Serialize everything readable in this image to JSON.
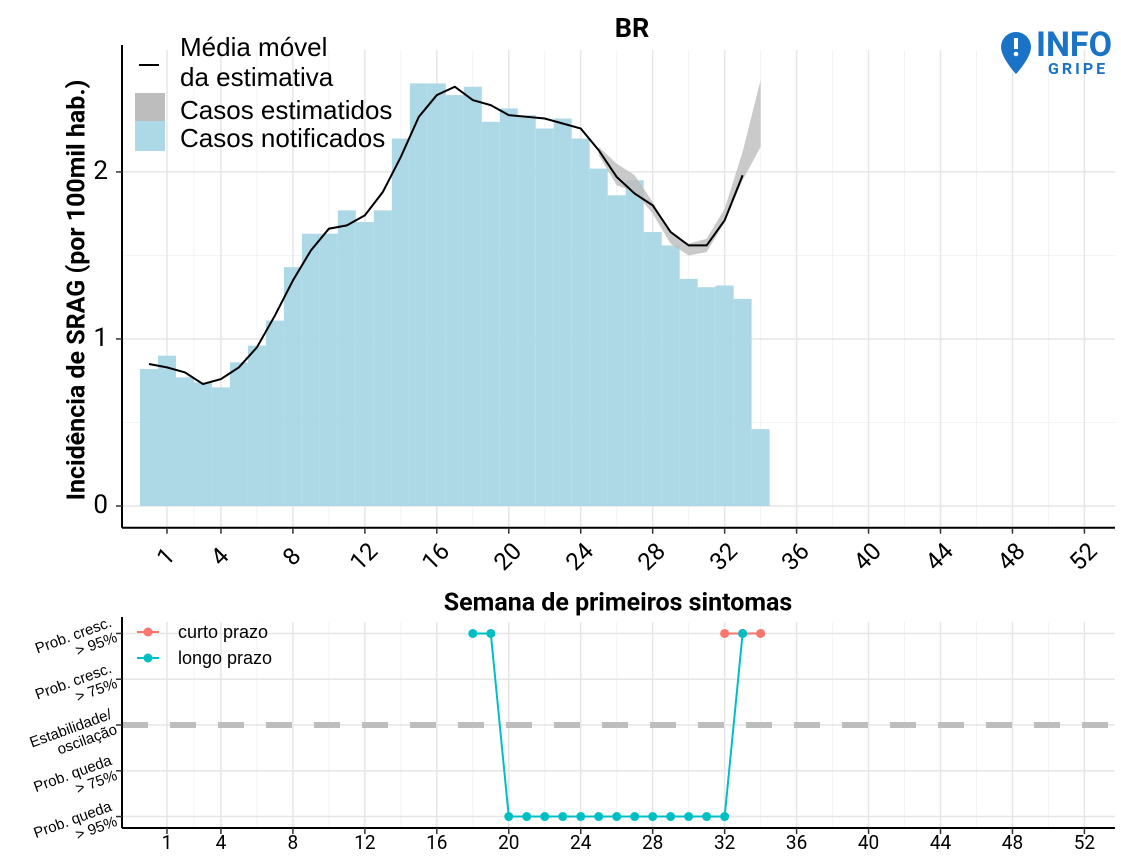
{
  "chart_data": [
    {
      "type": "bar",
      "title": "BR",
      "xlabel": "Semana de primeiros sintomas",
      "ylabel": "Incidência de SRAG (por 100mil hab.)",
      "x": [
        0,
        1,
        2,
        3,
        4,
        5,
        6,
        7,
        8,
        9,
        10,
        11,
        12,
        13,
        14,
        15,
        16,
        17,
        18,
        19,
        20,
        21,
        22,
        23,
        24,
        25,
        26,
        27,
        28,
        29,
        30,
        31,
        32,
        33,
        34
      ],
      "series": [
        {
          "name": "Média móvel\nda estimativa",
          "type": "line",
          "color": "#000000",
          "values": [
            0.85,
            0.83,
            0.8,
            0.73,
            0.76,
            0.83,
            0.95,
            1.14,
            1.35,
            1.53,
            1.66,
            1.68,
            1.74,
            1.88,
            2.09,
            2.33,
            2.46,
            2.51,
            2.43,
            2.4,
            2.34,
            2.33,
            2.32,
            2.29,
            2.26,
            2.13,
            1.97,
            1.87,
            1.8,
            1.64,
            1.56,
            1.56,
            1.71,
            1.98,
            null
          ]
        },
        {
          "name": "Casos estimatidos",
          "type": "band",
          "color": "#bdbdbd",
          "lower": [
            null,
            null,
            null,
            null,
            null,
            null,
            null,
            null,
            null,
            null,
            null,
            null,
            null,
            null,
            null,
            null,
            null,
            null,
            null,
            null,
            null,
            null,
            null,
            null,
            null,
            2.1,
            1.92,
            1.88,
            1.75,
            1.57,
            1.5,
            1.52,
            1.7,
            1.95,
            2.15
          ],
          "upper": [
            null,
            null,
            null,
            null,
            null,
            null,
            null,
            null,
            null,
            null,
            null,
            null,
            null,
            null,
            null,
            null,
            null,
            null,
            null,
            null,
            null,
            null,
            null,
            null,
            null,
            2.15,
            2.05,
            1.98,
            1.82,
            1.64,
            1.57,
            1.6,
            1.78,
            2.12,
            2.55
          ]
        },
        {
          "name": "Casos notificados",
          "type": "bar",
          "color": "#add8e6",
          "values": [
            0.82,
            0.9,
            0.77,
            0.74,
            0.71,
            0.86,
            0.96,
            1.11,
            1.43,
            1.63,
            1.63,
            1.77,
            1.7,
            1.77,
            2.2,
            2.53,
            2.53,
            2.46,
            2.51,
            2.3,
            2.38,
            2.34,
            2.26,
            2.32,
            2.2,
            2.02,
            1.86,
            1.95,
            1.64,
            1.56,
            1.36,
            1.31,
            1.32,
            1.24,
            0.46
          ]
        }
      ],
      "xlim": [
        -1.5,
        53.7
      ],
      "xticks": [
        1,
        4,
        8,
        12,
        16,
        20,
        24,
        28,
        32,
        36,
        40,
        44,
        48,
        52
      ],
      "ylim": [
        -0.13,
        2.73
      ],
      "yticks": [
        0,
        1,
        2
      ],
      "grid": true,
      "logo": [
        "INFO",
        "GRIPE"
      ]
    },
    {
      "type": "line",
      "series": [
        {
          "name": "curto prazo",
          "color": "#F8766D",
          "x": [
            32,
            33,
            34
          ],
          "values": [
            2,
            2,
            2
          ]
        },
        {
          "name": "longo prazo",
          "color": "#00BFC4",
          "x": [
            18,
            19,
            20,
            21,
            22,
            23,
            24,
            25,
            26,
            27,
            28,
            29,
            30,
            31,
            32,
            33
          ],
          "values": [
            2,
            2,
            -2,
            -2,
            -2,
            -2,
            -2,
            -2,
            -2,
            -2,
            -2,
            -2,
            -2,
            -2,
            -2,
            2
          ]
        }
      ],
      "xlim": [
        -1.5,
        53.7
      ],
      "xticks": [
        1,
        4,
        8,
        12,
        16,
        20,
        24,
        28,
        32,
        36,
        40,
        44,
        48,
        52
      ],
      "ylim": [
        -2.25,
        2.25
      ],
      "yticks": [
        {
          "value": -2,
          "label": "Prob. queda\n> 95%"
        },
        {
          "value": -1,
          "label": "Prob. queda\n> 75%"
        },
        {
          "value": 0,
          "label": "Estabilidade/\noscilação"
        },
        {
          "value": 1,
          "label": "Prob. cresc.\n> 75%"
        },
        {
          "value": 2,
          "label": "Prob. cresc.\n> 95%"
        }
      ],
      "hline": 0,
      "grid": true
    }
  ]
}
